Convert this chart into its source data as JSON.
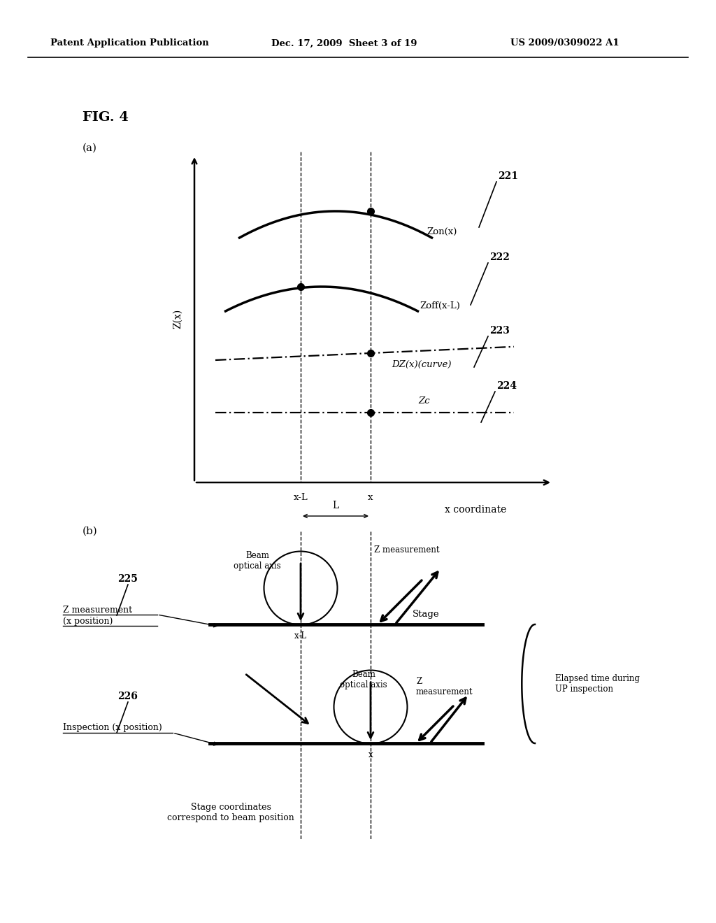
{
  "bg_color": "#ffffff",
  "header_left": "Patent Application Publication",
  "header_mid": "Dec. 17, 2009  Sheet 3 of 19",
  "header_right": "US 2009/0309022 A1",
  "fig_label": "FIG. 4",
  "sub_a": "(a)",
  "sub_b": "(b)",
  "label_221": "221",
  "label_222": "222",
  "label_223": "223",
  "label_224": "224",
  "label_225": "225",
  "label_226": "226",
  "curve_zon_label": "Zon(x)",
  "curve_zoff_label": "Zoff(x-L)",
  "curve_dz_label": "DZ(x)(curve)",
  "curve_zc_label": "Zc",
  "ylabel_a": "Z(x)",
  "xlabel_a": "x coordinate",
  "tick_xL": "x-L",
  "tick_x": "x",
  "dim_L": "L",
  "stage_label": "Stage",
  "beam_axis_label1": "Beam\noptical axis",
  "beam_axis_label2": "Beam\noptical axis",
  "z_meas_label1": "Z measurement",
  "z_meas_label2": "Z\nmeasurement",
  "elapsed_label": "Elapsed time during\nUP inspection",
  "stage_coord_label": "Stage coordinates\ncorrespond to beam position",
  "z_meas_pos_label": "Z measurement\n(x position)",
  "inspect_pos_label": "Inspection (x position)",
  "xL_label": "x-L",
  "x_label": "x"
}
